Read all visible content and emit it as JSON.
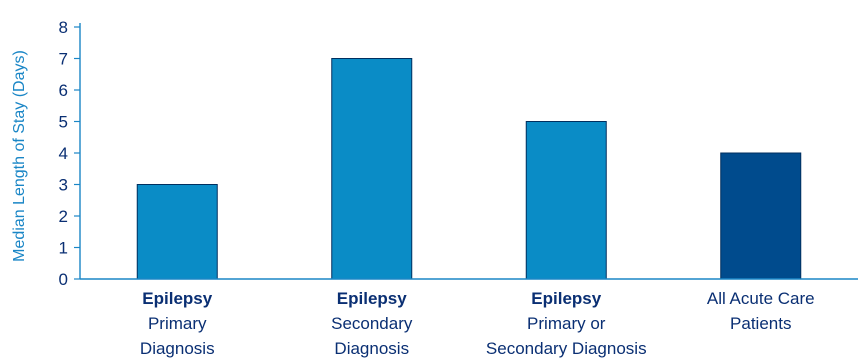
{
  "chart_data": {
    "type": "bar",
    "ylabel": "Median Length of Stay (Days)",
    "ylim": [
      0,
      8
    ],
    "yticks": [
      0,
      1,
      2,
      3,
      4,
      5,
      6,
      7,
      8
    ],
    "grid": false,
    "categories": [
      {
        "bold": "Epilepsy",
        "lines": [
          "Primary",
          "Diagnosis"
        ]
      },
      {
        "bold": "Epilepsy",
        "lines": [
          "Secondary",
          "Diagnosis"
        ]
      },
      {
        "bold": "Epilepsy",
        "lines": [
          "Primary or",
          "Secondary Diagnosis"
        ]
      },
      {
        "bold": "",
        "lines": [
          "All Acute Care",
          "Patients"
        ]
      }
    ],
    "values": [
      3,
      7,
      5,
      4
    ],
    "colors": [
      "#0a8cc6",
      "#0a8cc6",
      "#0a8cc6",
      "#004b8d"
    ],
    "axis_color": "#1a86c6"
  }
}
